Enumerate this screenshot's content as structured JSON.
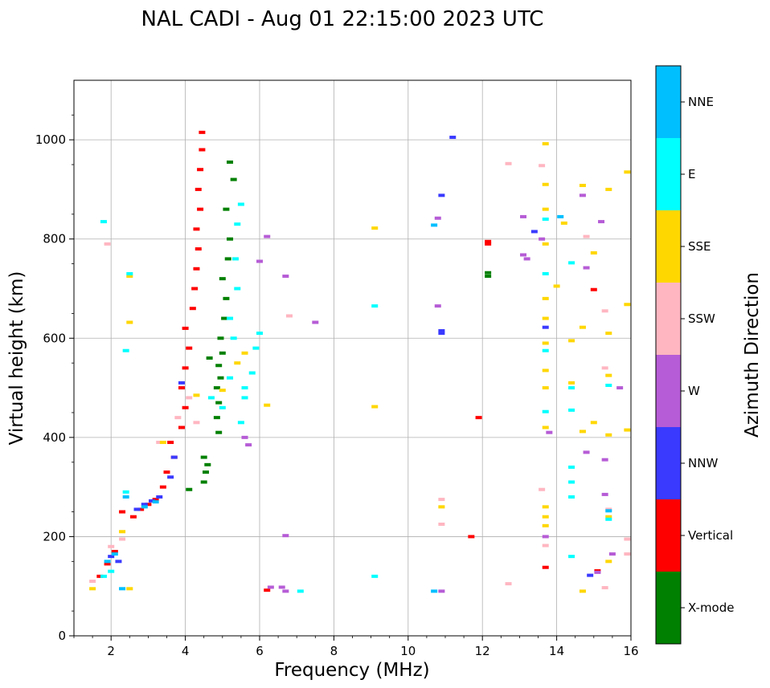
{
  "chart_data": {
    "type": "scatter",
    "title": "NAL CADI - Aug 01 22:15:00 2023 UTC",
    "xlabel": "Frequency (MHz)",
    "ylabel": "Virtual height (km)",
    "xlim": [
      1,
      16
    ],
    "ylim": [
      0,
      1120
    ],
    "xticks": [
      2,
      4,
      6,
      8,
      10,
      12,
      14,
      16
    ],
    "yticks": [
      0,
      200,
      400,
      600,
      800,
      1000
    ],
    "grid": true,
    "colorbar": {
      "label": "Azimuth Direction",
      "categories": [
        {
          "name": "X-mode",
          "color": "#008000"
        },
        {
          "name": "Vertical",
          "color": "#ff0000"
        },
        {
          "name": "NNW",
          "color": "#3a3aff"
        },
        {
          "name": "W",
          "color": "#b65cd6"
        },
        {
          "name": "SSW",
          "color": "#ffb6c1"
        },
        {
          "name": "SSE",
          "color": "#ffd700"
        },
        {
          "name": "E",
          "color": "#00ffff"
        },
        {
          "name": "NNE",
          "color": "#00bfff"
        }
      ]
    },
    "series": [
      {
        "name": "X-mode",
        "points": [
          [
            4.5,
            310
          ],
          [
            4.55,
            330
          ],
          [
            4.6,
            345
          ],
          [
            4.5,
            360
          ],
          [
            4.9,
            410
          ],
          [
            4.85,
            440
          ],
          [
            4.9,
            470
          ],
          [
            4.85,
            500
          ],
          [
            4.95,
            520
          ],
          [
            4.9,
            545
          ],
          [
            5.0,
            570
          ],
          [
            4.95,
            600
          ],
          [
            5.05,
            640
          ],
          [
            5.1,
            680
          ],
          [
            5.0,
            720
          ],
          [
            5.15,
            760
          ],
          [
            5.2,
            800
          ],
          [
            5.1,
            860
          ],
          [
            5.3,
            920
          ],
          [
            5.2,
            955
          ],
          [
            4.1,
            295
          ],
          [
            4.65,
            560
          ],
          [
            12.15,
            725
          ],
          [
            12.15,
            732
          ]
        ]
      },
      {
        "name": "Vertical",
        "points": [
          [
            1.7,
            120
          ],
          [
            1.9,
            145
          ],
          [
            2.1,
            170
          ],
          [
            2.3,
            250
          ],
          [
            2.6,
            240
          ],
          [
            2.8,
            255
          ],
          [
            3.0,
            265
          ],
          [
            3.2,
            275
          ],
          [
            3.4,
            300
          ],
          [
            3.5,
            330
          ],
          [
            3.7,
            360
          ],
          [
            3.6,
            390
          ],
          [
            3.9,
            420
          ],
          [
            4.0,
            460
          ],
          [
            3.9,
            500
          ],
          [
            4.0,
            540
          ],
          [
            4.1,
            580
          ],
          [
            4.0,
            620
          ],
          [
            4.2,
            660
          ],
          [
            4.25,
            700
          ],
          [
            4.3,
            740
          ],
          [
            4.35,
            780
          ],
          [
            4.3,
            820
          ],
          [
            4.4,
            860
          ],
          [
            4.35,
            900
          ],
          [
            4.4,
            940
          ],
          [
            4.45,
            980
          ],
          [
            4.45,
            1015
          ],
          [
            6.2,
            92
          ],
          [
            11.9,
            440
          ],
          [
            11.7,
            200
          ],
          [
            12.15,
            795
          ],
          [
            12.15,
            790
          ],
          [
            13.7,
            138
          ],
          [
            15.0,
            698
          ],
          [
            15.1,
            131
          ]
        ]
      },
      {
        "name": "NNW",
        "points": [
          [
            2.0,
            160
          ],
          [
            2.2,
            150
          ],
          [
            2.7,
            255
          ],
          [
            2.9,
            265
          ],
          [
            3.1,
            272
          ],
          [
            3.3,
            280
          ],
          [
            3.6,
            320
          ],
          [
            3.7,
            360
          ],
          [
            3.9,
            510
          ],
          [
            11.2,
            1005
          ],
          [
            10.9,
            888
          ],
          [
            10.9,
            615
          ],
          [
            10.9,
            610
          ],
          [
            13.4,
            815
          ],
          [
            13.7,
            622
          ],
          [
            14.9,
            122
          ]
        ]
      },
      {
        "name": "W",
        "points": [
          [
            6.2,
            805
          ],
          [
            6.0,
            755
          ],
          [
            6.7,
            725
          ],
          [
            7.5,
            632
          ],
          [
            6.6,
            98
          ],
          [
            6.7,
            90
          ],
          [
            6.3,
            98
          ],
          [
            10.9,
            90
          ],
          [
            10.8,
            665
          ],
          [
            10.8,
            842
          ],
          [
            13.1,
            845
          ],
          [
            13.1,
            768
          ],
          [
            13.2,
            760
          ],
          [
            13.6,
            800
          ],
          [
            13.8,
            410
          ],
          [
            13.7,
            200
          ],
          [
            14.7,
            888
          ],
          [
            14.8,
            742
          ],
          [
            14.8,
            370
          ],
          [
            15.3,
            355
          ],
          [
            15.3,
            285
          ],
          [
            15.1,
            128
          ],
          [
            15.7,
            500
          ],
          [
            15.5,
            165
          ],
          [
            5.6,
            400
          ],
          [
            5.7,
            385
          ],
          [
            6.7,
            202
          ],
          [
            15.2,
            835
          ]
        ]
      },
      {
        "name": "SSW",
        "points": [
          [
            1.5,
            110
          ],
          [
            2.0,
            180
          ],
          [
            2.3,
            195
          ],
          [
            3.3,
            390
          ],
          [
            3.8,
            440
          ],
          [
            4.1,
            480
          ],
          [
            4.3,
            430
          ],
          [
            10.9,
            275
          ],
          [
            10.9,
            225
          ],
          [
            12.7,
            952
          ],
          [
            12.7,
            105
          ],
          [
            13.6,
            948
          ],
          [
            13.6,
            295
          ],
          [
            13.7,
            182
          ],
          [
            14.8,
            805
          ],
          [
            15.3,
            655
          ],
          [
            15.3,
            540
          ],
          [
            15.4,
            255
          ],
          [
            15.3,
            97
          ],
          [
            15.9,
            195
          ],
          [
            15.9,
            165
          ],
          [
            6.8,
            645
          ],
          [
            1.9,
            790
          ]
        ]
      },
      {
        "name": "SSE",
        "points": [
          [
            1.5,
            95
          ],
          [
            2.5,
            725
          ],
          [
            2.5,
            632
          ],
          [
            2.5,
            95
          ],
          [
            3.4,
            390
          ],
          [
            4.3,
            485
          ],
          [
            5.0,
            495
          ],
          [
            5.6,
            570
          ],
          [
            5.4,
            550
          ],
          [
            6.2,
            465
          ],
          [
            9.1,
            822
          ],
          [
            9.1,
            462
          ],
          [
            10.9,
            260
          ],
          [
            13.7,
            992
          ],
          [
            13.7,
            910
          ],
          [
            13.7,
            860
          ],
          [
            13.7,
            790
          ],
          [
            13.7,
            680
          ],
          [
            13.7,
            640
          ],
          [
            13.7,
            590
          ],
          [
            13.7,
            535
          ],
          [
            13.7,
            500
          ],
          [
            13.7,
            420
          ],
          [
            13.7,
            260
          ],
          [
            13.7,
            240
          ],
          [
            13.7,
            222
          ],
          [
            14.0,
            705
          ],
          [
            14.2,
            832
          ],
          [
            14.4,
            595
          ],
          [
            14.4,
            510
          ],
          [
            14.7,
            908
          ],
          [
            14.7,
            622
          ],
          [
            14.7,
            412
          ],
          [
            14.7,
            90
          ],
          [
            15.0,
            772
          ],
          [
            15.0,
            430
          ],
          [
            15.4,
            900
          ],
          [
            15.4,
            610
          ],
          [
            15.4,
            525
          ],
          [
            15.4,
            405
          ],
          [
            15.4,
            240
          ],
          [
            15.4,
            150
          ],
          [
            15.9,
            935
          ],
          [
            15.9,
            668
          ],
          [
            15.9,
            415
          ],
          [
            2.3,
            210
          ]
        ]
      },
      {
        "name": "E",
        "points": [
          [
            1.8,
            120
          ],
          [
            2.0,
            130
          ],
          [
            2.4,
            290
          ],
          [
            2.4,
            575
          ],
          [
            2.5,
            730
          ],
          [
            4.7,
            480
          ],
          [
            5.0,
            460
          ],
          [
            5.2,
            520
          ],
          [
            5.3,
            600
          ],
          [
            5.2,
            640
          ],
          [
            5.4,
            700
          ],
          [
            5.35,
            760
          ],
          [
            5.4,
            830
          ],
          [
            5.5,
            870
          ],
          [
            5.6,
            500
          ],
          [
            5.8,
            530
          ],
          [
            5.9,
            580
          ],
          [
            6.0,
            610
          ],
          [
            5.5,
            430
          ],
          [
            5.6,
            480
          ],
          [
            7.1,
            90
          ],
          [
            9.1,
            665
          ],
          [
            9.1,
            120
          ],
          [
            13.7,
            840
          ],
          [
            13.7,
            730
          ],
          [
            13.7,
            575
          ],
          [
            13.7,
            452
          ],
          [
            14.4,
            752
          ],
          [
            14.4,
            500
          ],
          [
            14.4,
            455
          ],
          [
            14.4,
            340
          ],
          [
            14.4,
            310
          ],
          [
            14.4,
            280
          ],
          [
            14.4,
            160
          ],
          [
            15.4,
            505
          ],
          [
            15.4,
            235
          ],
          [
            1.8,
            835
          ]
        ]
      },
      {
        "name": "NNE",
        "points": [
          [
            1.9,
            150
          ],
          [
            2.1,
            165
          ],
          [
            2.3,
            95
          ],
          [
            2.4,
            280
          ],
          [
            2.9,
            260
          ],
          [
            3.2,
            270
          ],
          [
            10.7,
            90
          ],
          [
            10.7,
            828
          ],
          [
            14.1,
            845
          ],
          [
            15.4,
            252
          ]
        ]
      }
    ]
  }
}
